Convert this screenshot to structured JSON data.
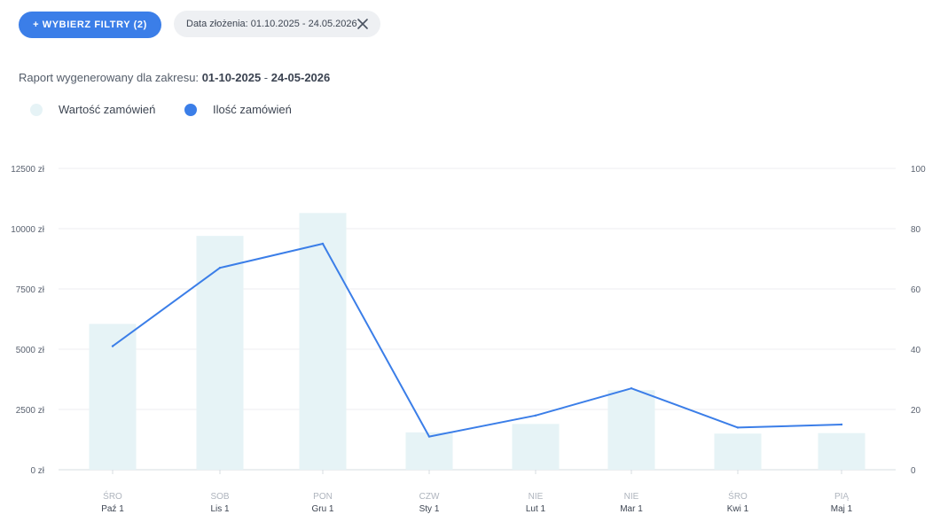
{
  "toolbar": {
    "filter_button_label": "+ WYBIERZ FILTRY (2)",
    "date_chip_label": "Data złożenia: 01.10.2025 - 24.05.2026"
  },
  "report": {
    "prefix": "Raport wygenerowany dla zakresu:",
    "range_start": "01-10-2025",
    "separator": " - ",
    "range_end": "24-05-2026"
  },
  "colors": {
    "accent": "#3b7ee8",
    "bar": "#e6f3f6",
    "legend_value_dot": "#e6f3f6",
    "legend_count_dot": "#3b7ee8"
  },
  "chart_data": {
    "type": "bar",
    "legend": [
      "Wartość zamówień",
      "Ilość zamówień"
    ],
    "legend_position": "top-left",
    "grid": true,
    "categories": [
      "Paź 1",
      "Lis 1",
      "Gru 1",
      "Sty 1",
      "Lut 1",
      "Mar 1",
      "Kwi 1",
      "Maj 1"
    ],
    "weekdays": [
      "ŚRO",
      "SOB",
      "PON",
      "CZW",
      "NIE",
      "NIE",
      "ŚRO",
      "PIĄ"
    ],
    "series": [
      {
        "name": "Wartość zamówień",
        "type": "bar",
        "axis": "left",
        "values": [
          6050,
          9700,
          10650,
          1550,
          1900,
          3300,
          1500,
          1520
        ]
      },
      {
        "name": "Ilość zamówień",
        "type": "line",
        "axis": "right",
        "values": [
          41,
          67,
          75,
          11,
          18,
          27,
          14,
          15
        ]
      }
    ],
    "y_left": {
      "ylim": [
        0,
        12500
      ],
      "ticks": [
        "0 zł",
        "2500 zł",
        "5000 zł",
        "7500 zł",
        "10000 zł",
        "12500 zł"
      ]
    },
    "y_right": {
      "ylim": [
        0,
        100
      ],
      "ticks": [
        "0",
        "20",
        "40",
        "60",
        "80",
        "100"
      ]
    }
  }
}
